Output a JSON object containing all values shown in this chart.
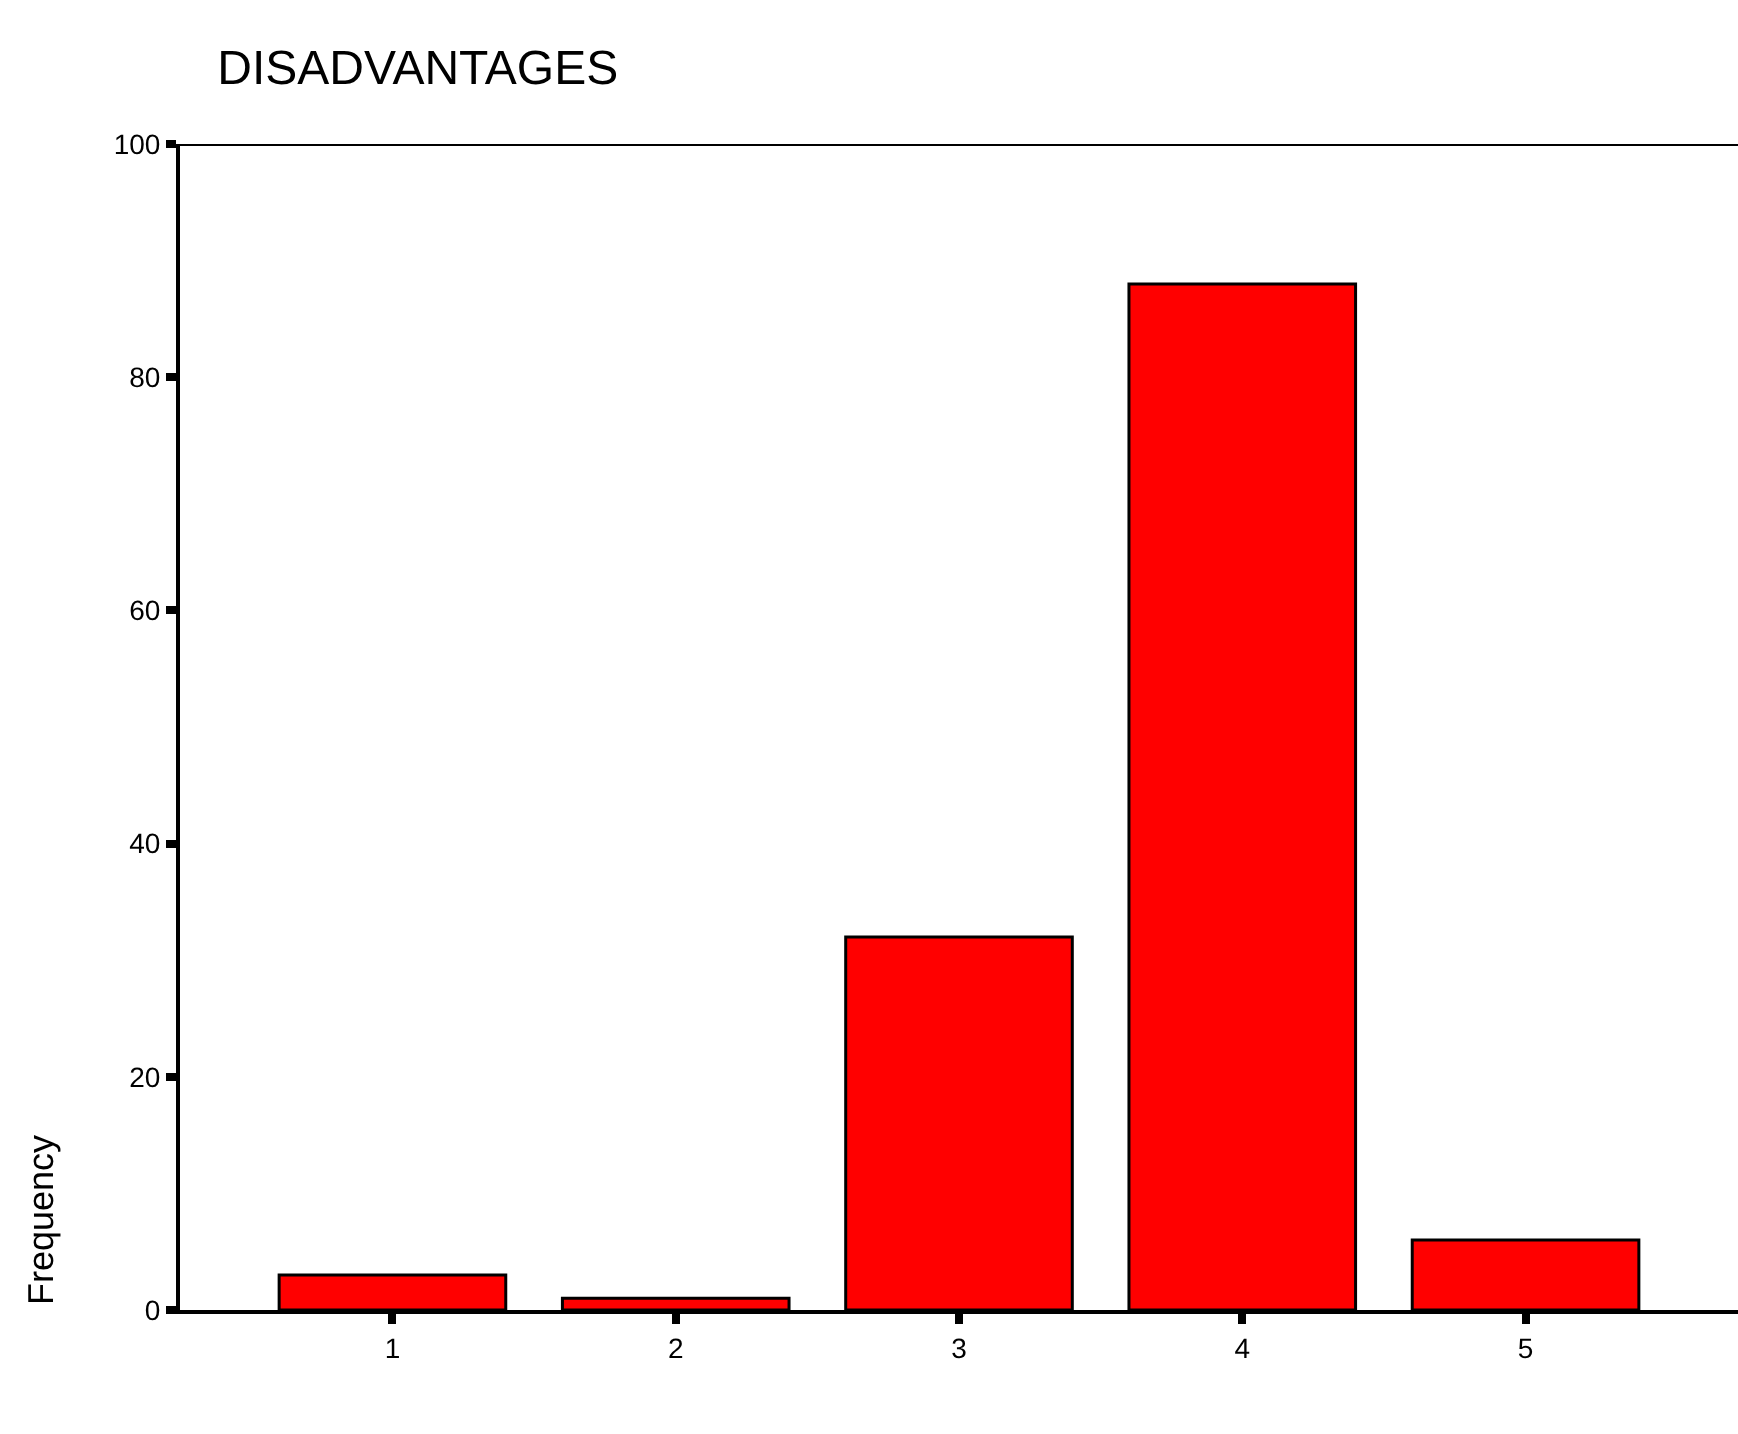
{
  "chart_data": {
    "type": "bar",
    "title": "DISADVANTAGES",
    "ylabel": "Frequency",
    "categories": [
      "1",
      "2",
      "3",
      "4",
      "5"
    ],
    "values": [
      3,
      1,
      32,
      88,
      6
    ],
    "color": "#ff0000",
    "ylim": [
      0,
      100
    ],
    "yticks": [
      0,
      20,
      40,
      60,
      80,
      100
    ]
  }
}
